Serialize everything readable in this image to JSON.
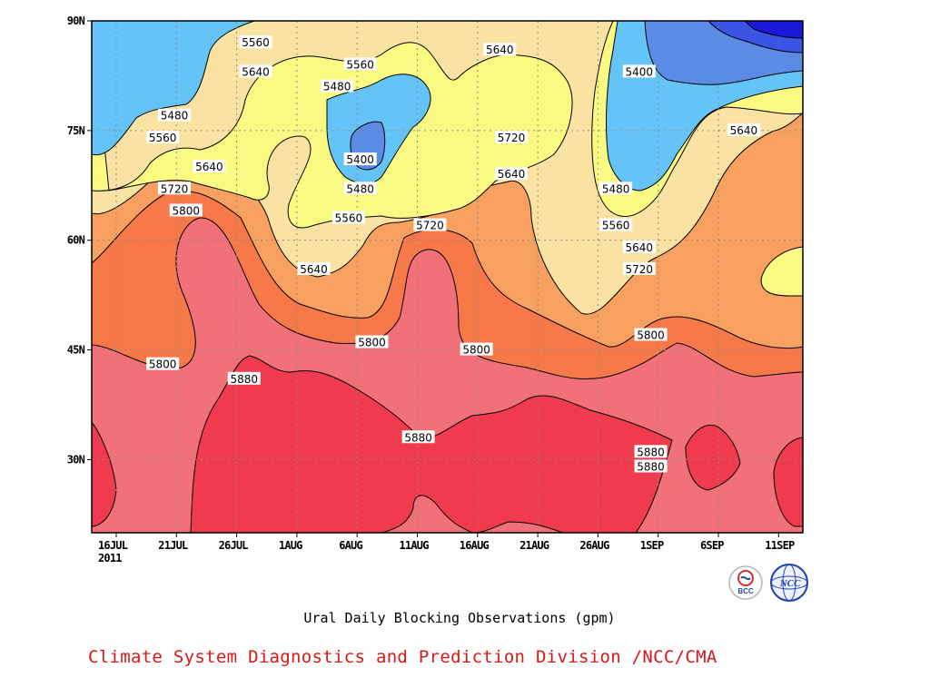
{
  "chart_data": {
    "type": "heatmap",
    "subtype": "filled-contour",
    "title": "Ural Daily Blocking Observations (gpm)",
    "footer": "Climate System Diagnostics and Prediction Division /NCC/CMA",
    "x_ticks": [
      "16JUL",
      "21JUL",
      "26JUL",
      "1AUG",
      "6AUG",
      "11AUG",
      "16AUG",
      "21AUG",
      "26AUG",
      "1SEP",
      "6SEP",
      "11SEP"
    ],
    "x_year": "2011",
    "y_ticks": [
      "30N",
      "45N",
      "60N",
      "75N",
      "90N"
    ],
    "y_values": [
      30,
      45,
      60,
      75,
      90
    ],
    "ylim": [
      20,
      90
    ],
    "grid": true,
    "contour_levels": [
      5320,
      5400,
      5480,
      5560,
      5640,
      5720,
      5800,
      5880
    ],
    "fill_colors": [
      "#1a1ad6",
      "#3a54e6",
      "#5a8ce6",
      "#64c4f8",
      "#fafa82",
      "#fae3a2",
      "#f8a060",
      "#f77848",
      "#f27078",
      "#f03a4e"
    ],
    "contour_labels": [
      {
        "text": "5560",
        "date": "28JUL",
        "lat": 87
      },
      {
        "text": "5640",
        "date": "28JUL",
        "lat": 83
      },
      {
        "text": "5560",
        "date": "6AUG",
        "lat": 84
      },
      {
        "text": "5480",
        "date": "4AUG",
        "lat": 81
      },
      {
        "text": "5640",
        "date": "18AUG",
        "lat": 86
      },
      {
        "text": "5400",
        "date": "30AUG",
        "lat": 83
      },
      {
        "text": "5480",
        "date": "21JUL",
        "lat": 77
      },
      {
        "text": "5560",
        "date": "20JUL",
        "lat": 74
      },
      {
        "text": "5720",
        "date": "19AUG",
        "lat": 74
      },
      {
        "text": "5640",
        "date": "8SEP",
        "lat": 75
      },
      {
        "text": "5640",
        "date": "24JUL",
        "lat": 70
      },
      {
        "text": "5400",
        "date": "6AUG",
        "lat": 71
      },
      {
        "text": "5640",
        "date": "19AUG",
        "lat": 69
      },
      {
        "text": "5720",
        "date": "21JUL",
        "lat": 67
      },
      {
        "text": "5480",
        "date": "6AUG",
        "lat": 67
      },
      {
        "text": "5480",
        "date": "28AUG",
        "lat": 67
      },
      {
        "text": "5800",
        "date": "22JUL",
        "lat": 64
      },
      {
        "text": "5560",
        "date": "5AUG",
        "lat": 63
      },
      {
        "text": "5720",
        "date": "12AUG",
        "lat": 62
      },
      {
        "text": "5560",
        "date": "28AUG",
        "lat": 62
      },
      {
        "text": "5640",
        "date": "30AUG",
        "lat": 59
      },
      {
        "text": "5720",
        "date": "30AUG",
        "lat": 56
      },
      {
        "text": "5640",
        "date": "2AUG",
        "lat": 56
      },
      {
        "text": "5800",
        "date": "31AUG",
        "lat": 47
      },
      {
        "text": "5800",
        "date": "7AUG",
        "lat": 46
      },
      {
        "text": "5800",
        "date": "16AUG",
        "lat": 45
      },
      {
        "text": "5800",
        "date": "20JUL",
        "lat": 43
      },
      {
        "text": "5880",
        "date": "27JUL",
        "lat": 41
      },
      {
        "text": "5880",
        "date": "11AUG",
        "lat": 33
      },
      {
        "text": "5880",
        "date": "31AUG",
        "lat": 31
      },
      {
        "text": "5880",
        "date": "31AUG",
        "lat": 29
      }
    ]
  },
  "logos": {
    "left": "BCC",
    "right": "NCC"
  }
}
